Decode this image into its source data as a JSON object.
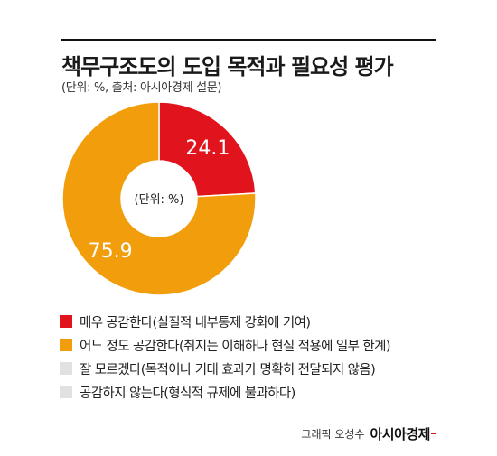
{
  "title": "책무구조도의 도입 목적과 필요성 평가",
  "subtitle": "(단위: %, 출처: 아시아경제 설문)",
  "center_label": "(단위: %)",
  "colors": {
    "red": "#e1141d",
    "orange": "#f19d0c",
    "gray": "#e1e1e1"
  },
  "chart_data": {
    "type": "pie",
    "donut": true,
    "title": "책무구조도의 도입 목적과 필요성 평가",
    "unit": "%",
    "categories": [
      "매우 공감한다(실질적 내부통제 강화에 기여)",
      "어느 정도 공감한다(취지는 이해하나 현실 적용에 일부 한계)",
      "잘 모르겠다(목적이나 기대 효과가 명확히 전달되지 않음)",
      "공감하지 않는다(형식적 규제에 불과하다)"
    ],
    "values": [
      24.1,
      75.9,
      0,
      0
    ],
    "value_labels": [
      "24.1",
      "75.9",
      "",
      ""
    ],
    "colors": [
      "#e1141d",
      "#f19d0c",
      "#e1e1e1",
      "#e1e1e1"
    ]
  },
  "legend": [
    {
      "label": "매우 공감한다(실질적 내부통제 강화에 기여)",
      "color": "#e1141d"
    },
    {
      "label": "어느 정도 공감한다(취지는 이해하나 현실 적용에 일부 한계)",
      "color": "#f19d0c"
    },
    {
      "label": "잘 모르겠다(목적이나 기대 효과가 명확히 전달되지 않음)",
      "color": "#e1e1e1"
    },
    {
      "label": "공감하지 않는다(형식적 규제에 불과하다)",
      "color": "#e1e1e1"
    }
  ],
  "credit": {
    "text": "그래픽 오성수",
    "brand": "아시아경제"
  }
}
